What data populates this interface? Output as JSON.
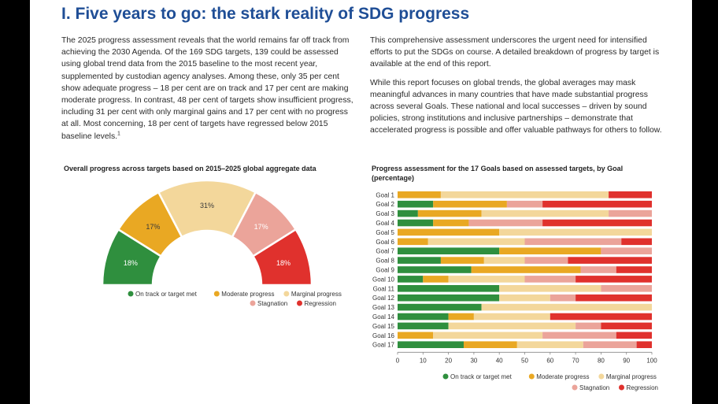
{
  "heading": "I. Five years to go: the stark reality of SDG progress",
  "left_paragraph": "The 2025 progress assessment reveals that the world remains far off track from achieving the 2030 Agenda. Of the 169 SDG targets, 139 could be assessed using global trend data from the 2015 baseline to the most recent year, supplemented by custodian agency analyses. Among these, only 35 per cent show adequate progress – 18 per cent are on track and 17 per cent are making moderate progress. In contrast, 48 per cent of targets show insufficient progress, including 31 per cent with only marginal gains and 17 per cent with no progress at all. Most concerning, 18 per cent of targets have regressed below 2015 baseline levels.",
  "footnote_marker": "1",
  "right_paragraph_1": "This comprehensive assessment underscores the urgent need for intensified efforts to put the SDGs on course. A detailed breakdown of progress by target is available at the end of this report.",
  "right_paragraph_2": "While this report focuses on global trends, the global averages may mask meaningful advances in many countries that have made substantial progress across several Goals. These national and local successes – driven by sound policies, strong institutions and inclusive partnerships – demonstrate that accelerated progress is possible and offer valuable pathways for others to follow.",
  "colors": {
    "on_track": "#2f8f3e",
    "moderate": "#e9a823",
    "marginal": "#f3d79b",
    "stagnation": "#eba49a",
    "regression": "#e0312d",
    "heading": "#1f4e96"
  },
  "chart_data": [
    {
      "type": "pie",
      "title": "Overall progress across targets based on 2015–2025 global aggregate data",
      "categories": [
        "On track or target met",
        "Moderate progress",
        "Marginal progress",
        "Stagnation",
        "Regression"
      ],
      "values": [
        18,
        17,
        31,
        17,
        18
      ],
      "value_labels": [
        "18%",
        "17%",
        "31%",
        "17%",
        "18%"
      ],
      "legend_placement": "bottom"
    },
    {
      "type": "bar",
      "title": "Progress assessment for the 17 Goals based on assessed targets, by Goal (percentage)",
      "categories": [
        "Goal 1",
        "Goal 2",
        "Goal 3",
        "Goal 4",
        "Goal 5",
        "Goal 6",
        "Goal 7",
        "Goal 8",
        "Goal 9",
        "Goal 10",
        "Goal 11",
        "Goal 12",
        "Goal 13",
        "Goal 14",
        "Goal 15",
        "Goal 16",
        "Goal 17"
      ],
      "series": [
        {
          "name": "On track or target met",
          "values": [
            0,
            14,
            8,
            14,
            0,
            0,
            40,
            17,
            29,
            10,
            40,
            40,
            33,
            20,
            20,
            0,
            26
          ]
        },
        {
          "name": "Moderate progress",
          "values": [
            17,
            29,
            25,
            14,
            40,
            12,
            40,
            17,
            43,
            10,
            0,
            0,
            0,
            10,
            0,
            14,
            21
          ]
        },
        {
          "name": "Marginal progress",
          "values": [
            66,
            0,
            50,
            0,
            60,
            38,
            0,
            16,
            0,
            30,
            40,
            20,
            67,
            30,
            50,
            43,
            26
          ]
        },
        {
          "name": "Stagnation",
          "values": [
            0,
            14,
            17,
            29,
            0,
            38,
            20,
            17,
            14,
            20,
            20,
            10,
            0,
            0,
            10,
            29,
            21
          ]
        },
        {
          "name": "Regression",
          "values": [
            17,
            43,
            0,
            43,
            0,
            12,
            0,
            33,
            14,
            30,
            0,
            30,
            0,
            40,
            20,
            14,
            6
          ]
        }
      ],
      "xticks": [
        "0",
        "10",
        "20",
        "30",
        "40",
        "50",
        "60",
        "70",
        "80",
        "90",
        "100"
      ],
      "xlim": [
        0,
        100
      ],
      "orientation": "horizontal",
      "stacked": true,
      "grid": false,
      "legend_placement": "bottom"
    }
  ]
}
